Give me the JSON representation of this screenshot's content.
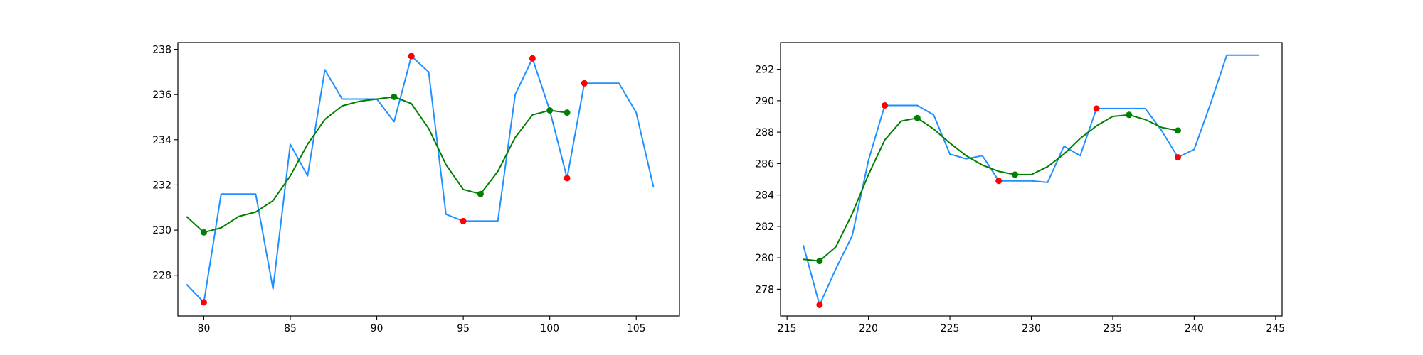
{
  "chart_data": [
    {
      "type": "line",
      "title": "",
      "xlabel": "",
      "ylabel": "",
      "grid": false,
      "xlim": [
        78.5,
        107.5
      ],
      "ylim": [
        226.2,
        238.3
      ],
      "xticks": [
        80,
        85,
        90,
        95,
        100,
        105
      ],
      "yticks": [
        228,
        230,
        232,
        234,
        236,
        238
      ],
      "colors": {
        "price": "#1e90ff",
        "smooth": "#008000",
        "red_markers": "#ff0000",
        "green_markers": "#008000"
      },
      "series": [
        {
          "style": "line",
          "color": "#1e90ff",
          "x": [
            79,
            80,
            81,
            82,
            83,
            84,
            85,
            86,
            87,
            88,
            89,
            90,
            91,
            92,
            93,
            94,
            95,
            96,
            97,
            98,
            99,
            100,
            101,
            102,
            103,
            104,
            105,
            106
          ],
          "y": [
            227.6,
            226.8,
            231.6,
            231.6,
            231.6,
            227.4,
            233.8,
            232.4,
            237.1,
            235.8,
            235.8,
            235.8,
            234.8,
            237.7,
            237.0,
            230.7,
            230.4,
            230.4,
            230.4,
            236.0,
            237.6,
            235.3,
            232.3,
            236.5,
            236.5,
            236.5,
            235.2,
            231.9
          ]
        },
        {
          "style": "line",
          "color": "#008000",
          "x": [
            79,
            80,
            81,
            82,
            83,
            84,
            85,
            86,
            87,
            88,
            89,
            90,
            91,
            92,
            93,
            94,
            95,
            96,
            97,
            98,
            99,
            100,
            101
          ],
          "y": [
            230.6,
            229.9,
            230.1,
            230.6,
            230.8,
            231.3,
            232.4,
            233.8,
            234.9,
            235.5,
            235.7,
            235.8,
            235.9,
            235.6,
            234.5,
            232.9,
            231.8,
            231.6,
            232.6,
            234.1,
            235.1,
            235.3,
            235.2
          ]
        },
        {
          "style": "markers",
          "color": "#ff0000",
          "x": [
            80,
            92,
            95,
            99,
            101,
            102
          ],
          "y": [
            226.8,
            237.7,
            230.4,
            237.6,
            232.3,
            236.5
          ]
        },
        {
          "style": "markers",
          "color": "#008000",
          "x": [
            80,
            91,
            96,
            100,
            101
          ],
          "y": [
            229.9,
            235.9,
            231.6,
            235.3,
            235.2
          ]
        }
      ]
    },
    {
      "type": "line",
      "title": "",
      "xlabel": "",
      "ylabel": "",
      "grid": false,
      "xlim": [
        214.6,
        245.4
      ],
      "ylim": [
        276.3,
        293.7
      ],
      "xticks": [
        215,
        220,
        225,
        230,
        235,
        240,
        245
      ],
      "yticks": [
        278,
        280,
        282,
        284,
        286,
        288,
        290,
        292
      ],
      "colors": {
        "price": "#1e90ff",
        "smooth": "#008000",
        "red_markers": "#ff0000",
        "green_markers": "#008000"
      },
      "series": [
        {
          "style": "line",
          "color": "#1e90ff",
          "x": [
            216,
            217,
            218,
            219,
            220,
            221,
            222,
            223,
            224,
            225,
            226,
            227,
            228,
            229,
            230,
            231,
            232,
            233,
            234,
            235,
            236,
            237,
            238,
            239,
            240,
            241,
            242,
            243,
            244
          ],
          "y": [
            280.8,
            277.0,
            279.3,
            281.4,
            286.2,
            289.7,
            289.7,
            289.7,
            289.1,
            286.6,
            286.3,
            286.5,
            284.9,
            284.9,
            284.9,
            284.8,
            287.1,
            286.5,
            289.5,
            289.5,
            289.5,
            289.5,
            288.1,
            286.4,
            286.9,
            289.8,
            292.9,
            292.9,
            292.9
          ]
        },
        {
          "style": "line",
          "color": "#008000",
          "x": [
            216,
            217,
            218,
            219,
            220,
            221,
            222,
            223,
            224,
            225,
            226,
            227,
            228,
            229,
            230,
            231,
            232,
            233,
            234,
            235,
            236,
            237,
            238,
            239
          ],
          "y": [
            279.9,
            279.8,
            280.7,
            282.8,
            285.3,
            287.5,
            288.7,
            288.9,
            288.2,
            287.3,
            286.5,
            285.9,
            285.5,
            285.3,
            285.3,
            285.8,
            286.6,
            287.6,
            288.4,
            289.0,
            289.1,
            288.8,
            288.3,
            288.1
          ]
        },
        {
          "style": "markers",
          "color": "#ff0000",
          "x": [
            217,
            221,
            228,
            234,
            239
          ],
          "y": [
            277.0,
            289.7,
            284.9,
            289.5,
            286.4
          ]
        },
        {
          "style": "markers",
          "color": "#008000",
          "x": [
            217,
            223,
            229,
            236,
            239
          ],
          "y": [
            279.8,
            288.9,
            285.3,
            289.1,
            288.1
          ]
        }
      ]
    }
  ]
}
